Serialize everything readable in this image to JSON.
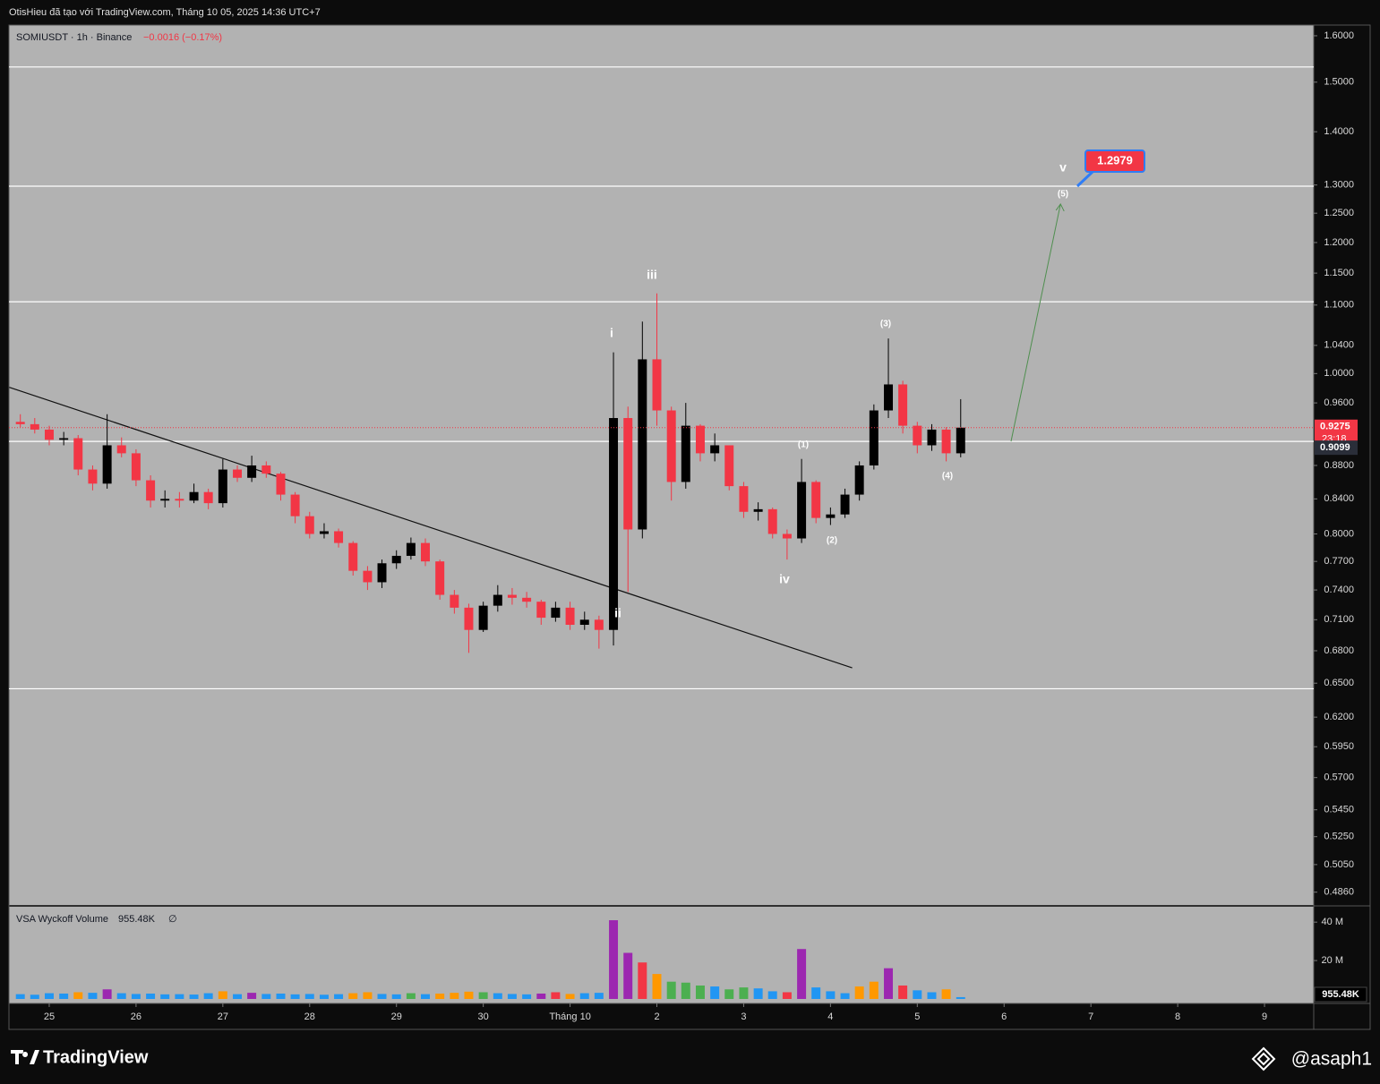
{
  "header": {
    "text": "OtisHieu đã tạo với TradingView.com, Tháng 10 05, 2025 14:36 UTC+7"
  },
  "footer": {
    "brand": "TradingView",
    "author": "@asaph1"
  },
  "chart_data": {
    "type": "candlestick",
    "symbol": "SOMIUSDT · 1h · Binance",
    "change": "−0.0016 (−0.17%)",
    "log_scale": true,
    "up_color": "#000000",
    "down_color": "#f23645",
    "x": [
      -0.333,
      -0.167,
      0,
      0.167,
      0.333,
      0.5,
      0.667,
      0.833,
      1,
      1.167,
      1.333,
      1.5,
      1.667,
      1.833,
      2,
      2.167,
      2.333,
      2.5,
      2.667,
      2.833,
      3,
      3.167,
      3.333,
      3.5,
      3.667,
      3.833,
      4,
      4.167,
      4.333,
      4.5,
      4.667,
      4.833,
      5,
      5.167,
      5.333,
      5.5,
      5.667,
      5.833,
      6,
      6.167,
      6.333,
      6.5,
      6.667,
      6.833,
      7,
      7.167,
      7.333,
      7.5,
      7.667,
      7.833,
      8,
      8.167,
      8.333,
      8.5,
      8.667,
      8.833,
      9,
      9.167,
      9.333,
      9.5,
      9.667,
      9.833,
      10,
      10.167,
      10.333,
      10.5
    ],
    "open": [
      0.935,
      0.932,
      0.925,
      0.912,
      0.914,
      0.875,
      0.858,
      0.905,
      0.895,
      0.862,
      0.838,
      0.84,
      0.838,
      0.848,
      0.835,
      0.875,
      0.865,
      0.88,
      0.87,
      0.845,
      0.82,
      0.8,
      0.803,
      0.79,
      0.76,
      0.748,
      0.768,
      0.776,
      0.79,
      0.77,
      0.735,
      0.722,
      0.7,
      0.724,
      0.735,
      0.732,
      0.728,
      0.712,
      0.722,
      0.705,
      0.71,
      0.7,
      0.94,
      0.805,
      1.02,
      0.95,
      0.86,
      0.93,
      0.895,
      0.905,
      0.855,
      0.825,
      0.828,
      0.8,
      0.795,
      0.86,
      0.818,
      0.822,
      0.845,
      0.88,
      0.95,
      0.985,
      0.93,
      0.905,
      0.925,
      0.895
    ],
    "high": [
      0.945,
      0.94,
      0.93,
      0.922,
      0.918,
      0.88,
      0.945,
      0.915,
      0.9,
      0.868,
      0.85,
      0.848,
      0.858,
      0.852,
      0.888,
      0.88,
      0.892,
      0.885,
      0.872,
      0.848,
      0.825,
      0.812,
      0.806,
      0.792,
      0.765,
      0.772,
      0.782,
      0.796,
      0.795,
      0.772,
      0.74,
      0.726,
      0.728,
      0.745,
      0.742,
      0.738,
      0.73,
      0.728,
      0.728,
      0.718,
      0.714,
      1.03,
      0.955,
      1.075,
      1.118,
      0.955,
      0.96,
      0.932,
      0.92,
      0.905,
      0.86,
      0.836,
      0.83,
      0.805,
      0.888,
      0.862,
      0.83,
      0.852,
      0.885,
      0.958,
      1.05,
      0.99,
      0.935,
      0.932,
      0.928,
      0.965
    ],
    "low": [
      0.928,
      0.92,
      0.905,
      0.905,
      0.868,
      0.85,
      0.852,
      0.89,
      0.855,
      0.83,
      0.83,
      0.83,
      0.835,
      0.828,
      0.83,
      0.86,
      0.86,
      0.865,
      0.838,
      0.812,
      0.795,
      0.795,
      0.785,
      0.755,
      0.74,
      0.742,
      0.762,
      0.772,
      0.765,
      0.73,
      0.716,
      0.678,
      0.698,
      0.718,
      0.725,
      0.722,
      0.705,
      0.708,
      0.7,
      0.7,
      0.682,
      0.685,
      0.738,
      0.795,
      0.93,
      0.838,
      0.852,
      0.885,
      0.885,
      0.85,
      0.818,
      0.815,
      0.795,
      0.772,
      0.79,
      0.812,
      0.81,
      0.818,
      0.838,
      0.875,
      0.94,
      0.92,
      0.895,
      0.898,
      0.885,
      0.89
    ],
    "close": [
      0.932,
      0.925,
      0.912,
      0.914,
      0.875,
      0.858,
      0.905,
      0.895,
      0.862,
      0.838,
      0.84,
      0.838,
      0.848,
      0.835,
      0.875,
      0.865,
      0.88,
      0.87,
      0.845,
      0.82,
      0.8,
      0.803,
      0.79,
      0.76,
      0.748,
      0.768,
      0.776,
      0.79,
      0.77,
      0.735,
      0.722,
      0.7,
      0.724,
      0.735,
      0.732,
      0.728,
      0.712,
      0.722,
      0.705,
      0.71,
      0.7,
      0.94,
      0.805,
      1.02,
      0.95,
      0.86,
      0.93,
      0.895,
      0.905,
      0.855,
      0.825,
      0.828,
      0.8,
      0.795,
      0.86,
      0.818,
      0.822,
      0.845,
      0.88,
      0.95,
      0.985,
      0.93,
      0.905,
      0.925,
      0.895,
      0.9275
    ],
    "countdown": "23:18",
    "xlim": [
      -0.464,
      14.567
    ],
    "xticks": [
      {
        "value": 0,
        "label": "25"
      },
      {
        "value": 1,
        "label": "26"
      },
      {
        "value": 2,
        "label": "27"
      },
      {
        "value": 3,
        "label": "28"
      },
      {
        "value": 4,
        "label": "29"
      },
      {
        "value": 5,
        "label": "30"
      },
      {
        "value": 6,
        "label": "Tháng 10"
      },
      {
        "value": 7,
        "label": "2"
      },
      {
        "value": 8,
        "label": "3"
      },
      {
        "value": 9,
        "label": "4"
      },
      {
        "value": 10,
        "label": "5"
      },
      {
        "value": 11,
        "label": "6"
      },
      {
        "value": 12,
        "label": "7"
      },
      {
        "value": 13,
        "label": "8"
      },
      {
        "value": 14,
        "label": "9"
      }
    ],
    "ylim": [
      0.478,
      1.624
    ],
    "yticks": [
      {
        "value": 1.6,
        "label": "1.6000"
      },
      {
        "value": 1.5,
        "label": "1.5000"
      },
      {
        "value": 1.4,
        "label": "1.4000"
      },
      {
        "value": 1.3,
        "label": "1.3000"
      },
      {
        "value": 1.25,
        "label": "1.2500"
      },
      {
        "value": 1.2,
        "label": "1.2000"
      },
      {
        "value": 1.15,
        "label": "1.1500"
      },
      {
        "value": 1.1,
        "label": "1.1000"
      },
      {
        "value": 1.04,
        "label": "1.0400"
      },
      {
        "value": 1.0,
        "label": "1.0000"
      },
      {
        "value": 0.96,
        "label": "0.9600"
      },
      {
        "value": 0.88,
        "label": "0.8800"
      },
      {
        "value": 0.84,
        "label": "0.8400"
      },
      {
        "value": 0.8,
        "label": "0.8000"
      },
      {
        "value": 0.77,
        "label": "0.7700"
      },
      {
        "value": 0.74,
        "label": "0.7400"
      },
      {
        "value": 0.71,
        "label": "0.7100"
      },
      {
        "value": 0.68,
        "label": "0.6800"
      },
      {
        "value": 0.65,
        "label": "0.6500"
      },
      {
        "value": 0.62,
        "label": "0.6200"
      },
      {
        "value": 0.595,
        "label": "0.5950"
      },
      {
        "value": 0.57,
        "label": "0.5700"
      },
      {
        "value": 0.545,
        "label": "0.5450"
      },
      {
        "value": 0.525,
        "label": "0.5250"
      },
      {
        "value": 0.505,
        "label": "0.5050"
      },
      {
        "value": 0.486,
        "label": "0.4860"
      }
    ],
    "levels": [
      1.532,
      1.2979,
      1.105,
      0.9099,
      0.645
    ],
    "trendline": {
      "x": [
        -0.46,
        9.25
      ],
      "y": [
        0.981,
        0.664
      ]
    },
    "projection": {
      "x": [
        11.08,
        11.65
      ],
      "y": [
        0.9099,
        1.266
      ]
    },
    "annotations": [
      "i",
      "ii",
      "iii",
      "iv",
      "v",
      "(1)",
      "(2)",
      "(3)",
      "(4)",
      "(5)"
    ],
    "volume": {
      "name": "VSA Wyckoff Volume",
      "last_label": "955.48K",
      "symbol": "∅",
      "values": [
        2500000,
        2200000,
        3000000,
        2800000,
        3500000,
        3200000,
        5000000,
        3000000,
        2600000,
        2800000,
        2400000,
        2500000,
        2300000,
        3000000,
        4000000,
        2500000,
        3200000,
        2600000,
        2800000,
        2400000,
        2600000,
        2200000,
        2500000,
        3000000,
        3500000,
        2600000,
        2400000,
        3000000,
        2500000,
        2800000,
        3200000,
        3800000,
        3500000,
        3000000,
        2600000,
        2400000,
        2800000,
        3500000,
        2600000,
        3000000,
        3200000,
        41000000,
        24000000,
        19000000,
        13000000,
        9000000,
        8500000,
        7000000,
        6500000,
        5000000,
        6000000,
        5500000,
        4000000,
        3500000,
        26000000,
        6000000,
        4000000,
        3000000,
        6500000,
        9000000,
        16000000,
        7000000,
        4500000,
        3500000,
        5000000,
        955480
      ],
      "colors": [
        "#2196f3",
        "#2196f3",
        "#2196f3",
        "#2196f3",
        "#ff9800",
        "#2196f3",
        "#9c27b0",
        "#2196f3",
        "#2196f3",
        "#2196f3",
        "#2196f3",
        "#2196f3",
        "#2196f3",
        "#2196f3",
        "#ff9800",
        "#2196f3",
        "#9c27b0",
        "#2196f3",
        "#2196f3",
        "#2196f3",
        "#2196f3",
        "#2196f3",
        "#2196f3",
        "#ff9800",
        "#ff9800",
        "#2196f3",
        "#2196f3",
        "#4caf50",
        "#2196f3",
        "#ff9800",
        "#ff9800",
        "#ff9800",
        "#4caf50",
        "#2196f3",
        "#2196f3",
        "#2196f3",
        "#9c27b0",
        "#f23645",
        "#ff9800",
        "#2196f3",
        "#2196f3",
        "#9c27b0",
        "#9c27b0",
        "#f23645",
        "#ff9800",
        "#4caf50",
        "#4caf50",
        "#4caf50",
        "#2196f3",
        "#4caf50",
        "#4caf50",
        "#2196f3",
        "#2196f3",
        "#f23645",
        "#9c27b0",
        "#2196f3",
        "#2196f3",
        "#2196f3",
        "#ff9800",
        "#ff9800",
        "#9c27b0",
        "#f23645",
        "#2196f3",
        "#2196f3",
        "#ff9800",
        "#2196f3"
      ],
      "ylim": [
        0,
        48000000
      ],
      "yticks": [
        {
          "value": 40000000,
          "label": "40 M"
        },
        {
          "value": 20000000,
          "label": "20 M"
        }
      ]
    }
  }
}
